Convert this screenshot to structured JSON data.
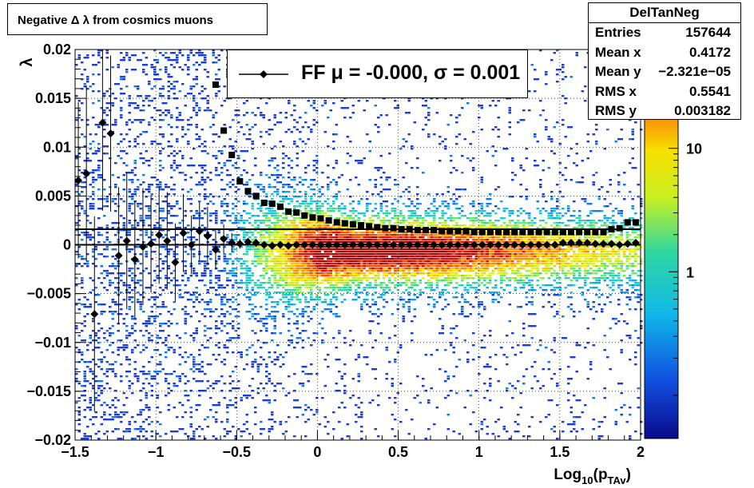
{
  "title": "Negative Δ λ from cosmics muons",
  "stats": {
    "name": "DelTanNeg",
    "rows": [
      {
        "label": "Entries",
        "value": "157644"
      },
      {
        "label": "Mean x",
        "value": "0.4172"
      },
      {
        "label": "Mean y",
        "value": "−2.321e−05"
      },
      {
        "label": "RMS x",
        "value": "0.5541"
      },
      {
        "label": "RMS y",
        "value": "0.003182"
      }
    ]
  },
  "legend": {
    "label": "FF μ = -0.000, σ =   0.001"
  },
  "colors": {
    "markers": "#000000",
    "grid": "#000000"
  },
  "chart_data": {
    "type": "heatmap",
    "title": "Negative Δ λ from cosmics muons",
    "xlabel_base": "Log",
    "xlabel_sub": "10",
    "xlabel_arg": "p",
    "xlabel_argsub": "TAv",
    "ylabel": "λ",
    "xlim": [
      -1.5,
      2
    ],
    "ylim": [
      -0.02,
      0.02
    ],
    "grid": true,
    "x_ticks": [
      {
        "v": -1.5,
        "label": "−1.5"
      },
      {
        "v": -1,
        "label": "−1"
      },
      {
        "v": -0.5,
        "label": "−0.5"
      },
      {
        "v": 0,
        "label": "0"
      },
      {
        "v": 0.5,
        "label": "0.5"
      },
      {
        "v": 1,
        "label": "1"
      },
      {
        "v": 1.5,
        "label": "1.5"
      },
      {
        "v": 2,
        "label": "2"
      }
    ],
    "y_ticks": [
      {
        "v": -0.02,
        "label": "−0.02"
      },
      {
        "v": -0.015,
        "label": "−0.015"
      },
      {
        "v": -0.01,
        "label": "−0.01"
      },
      {
        "v": -0.005,
        "label": "−0.005"
      },
      {
        "v": 0,
        "label": "0"
      },
      {
        "v": 0.005,
        "label": "0.005"
      },
      {
        "v": 0.01,
        "label": "0.01"
      },
      {
        "v": 0.015,
        "label": "0.015"
      },
      {
        "v": 0.02,
        "label": "0.02"
      }
    ],
    "z_scale": "log",
    "z_ticks": [
      {
        "v": 1,
        "label": "1"
      },
      {
        "v": 10,
        "label": "10"
      }
    ],
    "palette": "rainbow",
    "series": [
      {
        "name": "FF",
        "marker": "diamond",
        "points": [
          {
            "x": -1.48,
            "y": 0.0066,
            "err": 0.008
          },
          {
            "x": -1.43,
            "y": 0.0073,
            "err": 0.009
          },
          {
            "x": -1.38,
            "y": -0.0071,
            "err": 0.01
          },
          {
            "x": -1.33,
            "y": 0.0125,
            "err": 0.009
          },
          {
            "x": -1.28,
            "y": 0.0114,
            "err": 0.008
          },
          {
            "x": -1.23,
            "y": -0.0011,
            "err": 0.007
          },
          {
            "x": -1.18,
            "y": 0.0004,
            "err": 0.007
          },
          {
            "x": -1.13,
            "y": -0.0015,
            "err": 0.006
          },
          {
            "x": -1.08,
            "y": -0.0002,
            "err": 0.006
          },
          {
            "x": -1.03,
            "y": 0.0001,
            "err": 0.005
          },
          {
            "x": -0.98,
            "y": 0.001,
            "err": 0.005
          },
          {
            "x": -0.93,
            "y": 0.0004,
            "err": 0.005
          },
          {
            "x": -0.88,
            "y": -0.0018,
            "err": 0.004
          },
          {
            "x": -0.83,
            "y": 0.0012,
            "err": 0.004
          },
          {
            "x": -0.78,
            "y": 0.0,
            "err": 0.003
          },
          {
            "x": -0.73,
            "y": 0.0014,
            "err": 0.003
          },
          {
            "x": -0.68,
            "y": 0.0009,
            "err": 0.003
          },
          {
            "x": -0.63,
            "y": -0.0005,
            "err": 0.002
          },
          {
            "x": -0.58,
            "y": 0.0006,
            "err": 0.0015
          },
          {
            "x": -0.53,
            "y": 0.0002,
            "err": 0.001
          },
          {
            "x": -0.48,
            "y": 0.0001,
            "err": 0.0005
          },
          {
            "x": -0.43,
            "y": 0.0003,
            "err": 0.0004
          },
          {
            "x": -0.38,
            "y": 0.0002,
            "err": 0.0003
          },
          {
            "x": -0.33,
            "y": 0.0,
            "err": 0.0002
          },
          {
            "x": -0.28,
            "y": -0.0001,
            "err": 0.0001
          },
          {
            "x": -0.23,
            "y": 0.0,
            "err": 0.0001
          },
          {
            "x": -0.18,
            "y": -0.0001,
            "err": 0
          },
          {
            "x": -0.13,
            "y": 0.0,
            "err": 0
          },
          {
            "x": -0.08,
            "y": 0.0,
            "err": 0
          },
          {
            "x": -0.03,
            "y": 0.0,
            "err": 0
          },
          {
            "x": 0.02,
            "y": 0.0,
            "err": 0
          },
          {
            "x": 0.07,
            "y": 0.0,
            "err": 0
          },
          {
            "x": 0.12,
            "y": 0.0,
            "err": 0
          },
          {
            "x": 0.17,
            "y": 0.0,
            "err": 0
          },
          {
            "x": 0.22,
            "y": 0.0,
            "err": 0
          },
          {
            "x": 0.27,
            "y": 0.0,
            "err": 0
          },
          {
            "x": 0.32,
            "y": 0.0,
            "err": 0
          },
          {
            "x": 0.37,
            "y": 0.0,
            "err": 0
          },
          {
            "x": 0.42,
            "y": 0.0,
            "err": 0
          },
          {
            "x": 0.47,
            "y": 0.0,
            "err": 0
          },
          {
            "x": 0.52,
            "y": 0.0,
            "err": 0
          },
          {
            "x": 0.57,
            "y": 0.0,
            "err": 0
          },
          {
            "x": 0.62,
            "y": 0.0,
            "err": 0
          },
          {
            "x": 0.67,
            "y": 0.0,
            "err": 0
          },
          {
            "x": 0.72,
            "y": 0.0,
            "err": 0
          },
          {
            "x": 0.77,
            "y": 0.0,
            "err": 0
          },
          {
            "x": 0.82,
            "y": 0.0,
            "err": 0
          },
          {
            "x": 0.87,
            "y": 0.0,
            "err": 0
          },
          {
            "x": 0.92,
            "y": 0.0,
            "err": 0
          },
          {
            "x": 0.97,
            "y": 0.0,
            "err": 0
          },
          {
            "x": 1.02,
            "y": 0.0,
            "err": 0
          },
          {
            "x": 1.07,
            "y": 0.0,
            "err": 0
          },
          {
            "x": 1.12,
            "y": 0.0,
            "err": 0
          },
          {
            "x": 1.17,
            "y": 0.0,
            "err": 0
          },
          {
            "x": 1.22,
            "y": 0.0,
            "err": 0
          },
          {
            "x": 1.27,
            "y": 0.0,
            "err": 0
          },
          {
            "x": 1.32,
            "y": 0.0,
            "err": 0
          },
          {
            "x": 1.37,
            "y": 0.0,
            "err": 0
          },
          {
            "x": 1.42,
            "y": 0.0,
            "err": 0
          },
          {
            "x": 1.47,
            "y": 0.0,
            "err": 0
          },
          {
            "x": 1.52,
            "y": 0.0002,
            "err": 0
          },
          {
            "x": 1.57,
            "y": 0.0002,
            "err": 0
          },
          {
            "x": 1.62,
            "y": 0.0002,
            "err": 0
          },
          {
            "x": 1.67,
            "y": 0.0002,
            "err": 0
          },
          {
            "x": 1.72,
            "y": 0.0001,
            "err": 0
          },
          {
            "x": 1.77,
            "y": 0.0001,
            "err": 0
          },
          {
            "x": 1.82,
            "y": 0.0001,
            "err": 0
          },
          {
            "x": 1.87,
            "y": 0.0,
            "err": 0
          },
          {
            "x": 1.92,
            "y": 0.0001,
            "err": 0
          },
          {
            "x": 1.97,
            "y": 0.0002,
            "err": 0
          }
        ]
      },
      {
        "marker": "square",
        "points": [
          {
            "x": -0.63,
            "y": 0.0164
          },
          {
            "x": -0.58,
            "y": 0.0117
          },
          {
            "x": -0.53,
            "y": 0.0092
          },
          {
            "x": -0.48,
            "y": 0.0065
          },
          {
            "x": -0.43,
            "y": 0.0055
          },
          {
            "x": -0.38,
            "y": 0.005
          },
          {
            "x": -0.33,
            "y": 0.0043
          },
          {
            "x": -0.28,
            "y": 0.0042
          },
          {
            "x": -0.23,
            "y": 0.0039
          },
          {
            "x": -0.18,
            "y": 0.0034
          },
          {
            "x": -0.13,
            "y": 0.0033
          },
          {
            "x": -0.08,
            "y": 0.003
          },
          {
            "x": -0.03,
            "y": 0.0028
          },
          {
            "x": 0.02,
            "y": 0.0027
          },
          {
            "x": 0.07,
            "y": 0.0025
          },
          {
            "x": 0.12,
            "y": 0.0023
          },
          {
            "x": 0.17,
            "y": 0.0022
          },
          {
            "x": 0.22,
            "y": 0.0021
          },
          {
            "x": 0.27,
            "y": 0.002
          },
          {
            "x": 0.32,
            "y": 0.0019
          },
          {
            "x": 0.37,
            "y": 0.0018
          },
          {
            "x": 0.42,
            "y": 0.0017
          },
          {
            "x": 0.47,
            "y": 0.0017
          },
          {
            "x": 0.52,
            "y": 0.0016
          },
          {
            "x": 0.57,
            "y": 0.0016
          },
          {
            "x": 0.62,
            "y": 0.0015
          },
          {
            "x": 0.67,
            "y": 0.0015
          },
          {
            "x": 0.72,
            "y": 0.0015
          },
          {
            "x": 0.77,
            "y": 0.0014
          },
          {
            "x": 0.82,
            "y": 0.0014
          },
          {
            "x": 0.87,
            "y": 0.0014
          },
          {
            "x": 0.92,
            "y": 0.0014
          },
          {
            "x": 0.97,
            "y": 0.0013
          },
          {
            "x": 1.02,
            "y": 0.0013
          },
          {
            "x": 1.07,
            "y": 0.0013
          },
          {
            "x": 1.12,
            "y": 0.0013
          },
          {
            "x": 1.17,
            "y": 0.0013
          },
          {
            "x": 1.22,
            "y": 0.0013
          },
          {
            "x": 1.27,
            "y": 0.0013
          },
          {
            "x": 1.32,
            "y": 0.0013
          },
          {
            "x": 1.37,
            "y": 0.0013
          },
          {
            "x": 1.42,
            "y": 0.0013
          },
          {
            "x": 1.47,
            "y": 0.0013
          },
          {
            "x": 1.52,
            "y": 0.0013
          },
          {
            "x": 1.57,
            "y": 0.0013
          },
          {
            "x": 1.62,
            "y": 0.0013
          },
          {
            "x": 1.67,
            "y": 0.0013
          },
          {
            "x": 1.72,
            "y": 0.0013
          },
          {
            "x": 1.77,
            "y": 0.0013
          },
          {
            "x": 1.82,
            "y": 0.0016
          },
          {
            "x": 1.87,
            "y": 0.0017
          },
          {
            "x": 1.92,
            "y": 0.0023
          },
          {
            "x": 1.97,
            "y": 0.0023
          }
        ]
      }
    ],
    "reference_lines": [
      0.0016,
      0.0
    ]
  }
}
